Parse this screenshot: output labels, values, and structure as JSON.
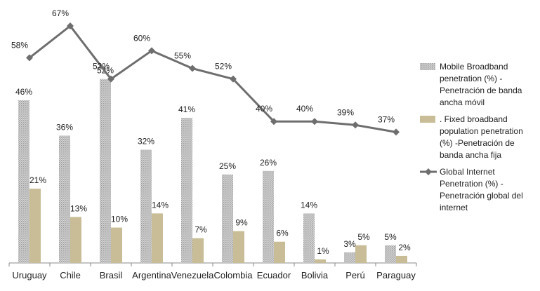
{
  "chart_data": {
    "type": "bar",
    "categories": [
      "Uruguay",
      "Chile",
      "Brasil",
      "Argentina",
      "Venezuela",
      "Colombia",
      "Ecuador",
      "Bolivia",
      "Perú",
      "Paraguay"
    ],
    "ylim": [
      0,
      67
    ],
    "grid": false,
    "legend_position": "right",
    "series": [
      {
        "name": "Mobile Broadband penetration (%) - Penetración de banda ancha móvil",
        "type": "bar",
        "pattern": "hatched-grey",
        "values": [
          46,
          36,
          52,
          32,
          41,
          25,
          26,
          14,
          3,
          5
        ],
        "labels": [
          "46%",
          "36%",
          "52%",
          "32%",
          "41%",
          "25%",
          "26%",
          "14%",
          "3%",
          "5%"
        ]
      },
      {
        "name": ". Fixed broadband population penetration (%) -Penetración de banda ancha fija",
        "type": "bar",
        "color": "#c8bd96",
        "values": [
          21,
          13,
          10,
          14,
          7,
          9,
          6,
          1,
          5,
          2
        ],
        "labels": [
          "21%",
          "13%",
          "10%",
          "14%",
          "7%",
          "9%",
          "6%",
          "1%",
          "5%",
          "2%"
        ]
      },
      {
        "name": "Global Internet Penetration (%) - Penetración global del internet",
        "type": "line",
        "color": "#6e6e6e",
        "marker": "diamond",
        "values": [
          58,
          67,
          52,
          60,
          55,
          52,
          40,
          40,
          39,
          37
        ],
        "labels": [
          "58%",
          "67%",
          "52%",
          "60%",
          "55%",
          "52%",
          "40%",
          "40%",
          "39%",
          "37%"
        ]
      }
    ],
    "legend": [
      {
        "series": 0,
        "lines": [
          "Mobile Broadband",
          "penetration (%) -",
          "Penetración de banda",
          "ancha móvil"
        ]
      },
      {
        "series": 1,
        "lines": [
          ". Fixed broadband",
          "population penetration",
          "(%) -Penetración de",
          "banda ancha fija"
        ]
      },
      {
        "series": 2,
        "lines": [
          "Global Internet",
          "Penetration (%) -",
          "Penetración global del",
          "internet"
        ]
      }
    ]
  }
}
